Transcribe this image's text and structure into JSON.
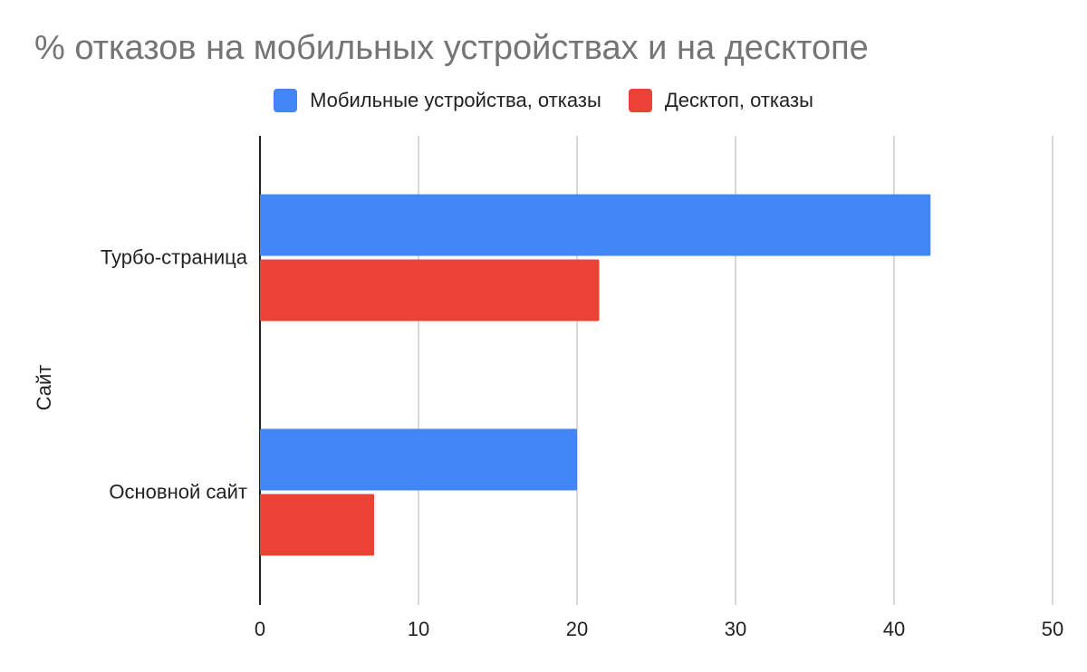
{
  "chart_data": {
    "type": "bar",
    "orientation": "horizontal",
    "title": "% отказов на мобильных устройствах и на десктопе",
    "ylabel": "Сайт",
    "xlabel": "",
    "categories": [
      "Турбо-страница",
      "Основной сайт"
    ],
    "series": [
      {
        "name": "Мобильные устройства, отказы",
        "color": "#4285f4",
        "values": [
          42.3,
          20.0
        ]
      },
      {
        "name": "Десктоп, отказы",
        "color": "#ea4335",
        "values": [
          21.4,
          7.2
        ]
      }
    ],
    "xlim": [
      0,
      50
    ],
    "xticks": [
      "0",
      "10",
      "20",
      "30",
      "40",
      "50"
    ],
    "grid": true,
    "legend": "top"
  }
}
